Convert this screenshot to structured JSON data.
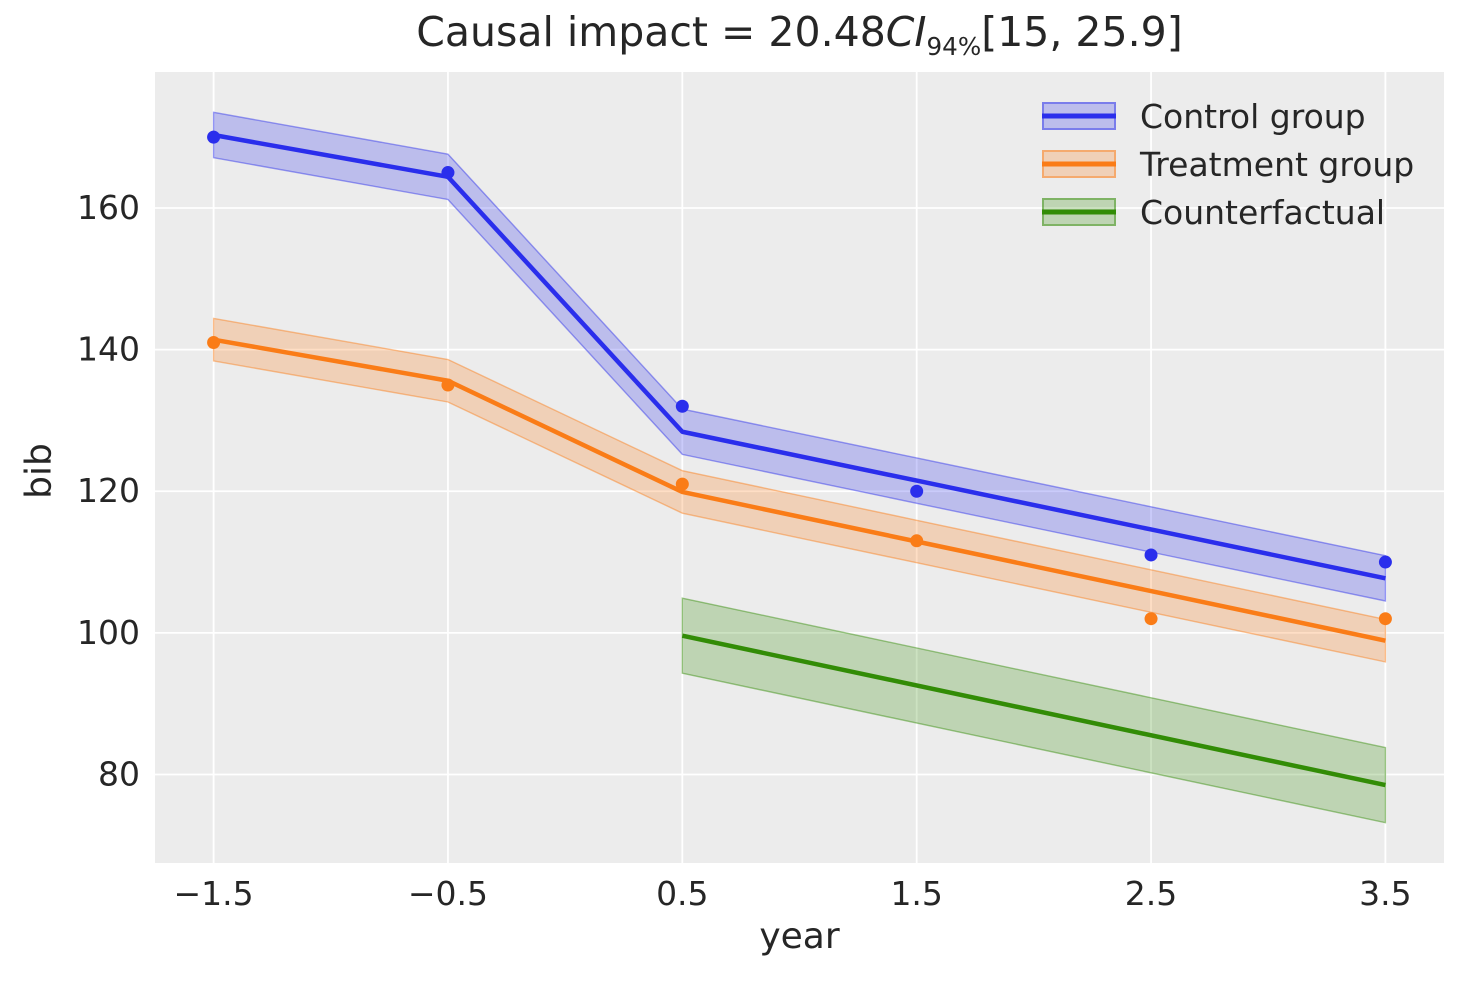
{
  "figure": {
    "title_prefix": "Causal impact = 20.48",
    "title_ci": "CI",
    "title_ci_sub": "94%",
    "title_interval": "[15, 25.9]",
    "xlabel": "year",
    "ylabel": "bib"
  },
  "legend": {
    "items": [
      {
        "label": "Control group"
      },
      {
        "label": "Treatment group"
      },
      {
        "label": "Counterfactual"
      }
    ]
  },
  "chart_data": {
    "type": "line",
    "title": "Causal impact = 20.48 CI_94% [15, 25.9]",
    "xlabel": "year",
    "ylabel": "bib",
    "xlim": [
      -1.75,
      3.75
    ],
    "ylim": [
      67.5,
      179.2
    ],
    "x_ticks": [
      -1.5,
      -0.5,
      0.5,
      1.5,
      2.5,
      3.5
    ],
    "x_tick_labels": [
      "−1.5",
      "−0.5",
      "0.5",
      "1.5",
      "2.5",
      "3.5"
    ],
    "y_ticks": [
      80,
      100,
      120,
      140,
      160
    ],
    "y_tick_labels": [
      "80",
      "100",
      "120",
      "140",
      "160"
    ],
    "grid": true,
    "axes_background": "#ececec",
    "grid_color": "#ffffff",
    "text_color": "#262626",
    "legend_position": "upper right",
    "band_fill_alpha": 0.25,
    "band_edge_alpha": 0.45,
    "series": [
      {
        "name": "Control group",
        "color": "#2a2eec",
        "scatter": {
          "x": [
            -1.5,
            -0.5,
            0.5,
            1.5,
            2.5,
            3.5
          ],
          "y": [
            170,
            165,
            132,
            120,
            111,
            110
          ]
        },
        "line": {
          "x": [
            -1.5,
            -0.5,
            0.5,
            1.5,
            2.5,
            3.5
          ],
          "y": [
            170.3,
            164.4,
            128.4,
            121.5,
            114.6,
            107.7
          ]
        },
        "band": {
          "x": [
            -1.5,
            -0.5,
            0.5,
            1.5,
            2.5,
            3.5
          ],
          "upper": [
            173.5,
            167.6,
            131.6,
            124.7,
            117.8,
            110.9
          ],
          "lower": [
            167.1,
            161.2,
            125.2,
            118.3,
            111.4,
            104.5
          ]
        }
      },
      {
        "name": "Treatment group",
        "color": "#fa7c17",
        "scatter": {
          "x": [
            -1.5,
            -0.5,
            0.5,
            1.5,
            2.5,
            3.5
          ],
          "y": [
            141,
            135,
            121,
            113,
            102,
            102
          ]
        },
        "line": {
          "x": [
            -1.5,
            -0.5,
            0.5,
            1.5,
            2.5,
            3.5
          ],
          "y": [
            141.4,
            135.6,
            119.9,
            112.9,
            105.9,
            98.9
          ]
        },
        "band": {
          "x": [
            -1.5,
            -0.5,
            0.5,
            1.5,
            2.5,
            3.5
          ],
          "upper": [
            144.4,
            138.6,
            122.9,
            115.9,
            108.9,
            101.9
          ],
          "lower": [
            138.4,
            132.6,
            116.9,
            109.9,
            102.9,
            95.9
          ]
        }
      },
      {
        "name": "Counterfactual",
        "color": "#328c06",
        "scatter": null,
        "line": {
          "x": [
            0.5,
            3.5
          ],
          "y": [
            99.6,
            78.5
          ]
        },
        "band": {
          "x": [
            0.5,
            3.5
          ],
          "upper": [
            104.9,
            83.8
          ],
          "lower": [
            94.3,
            73.2
          ]
        }
      }
    ]
  }
}
